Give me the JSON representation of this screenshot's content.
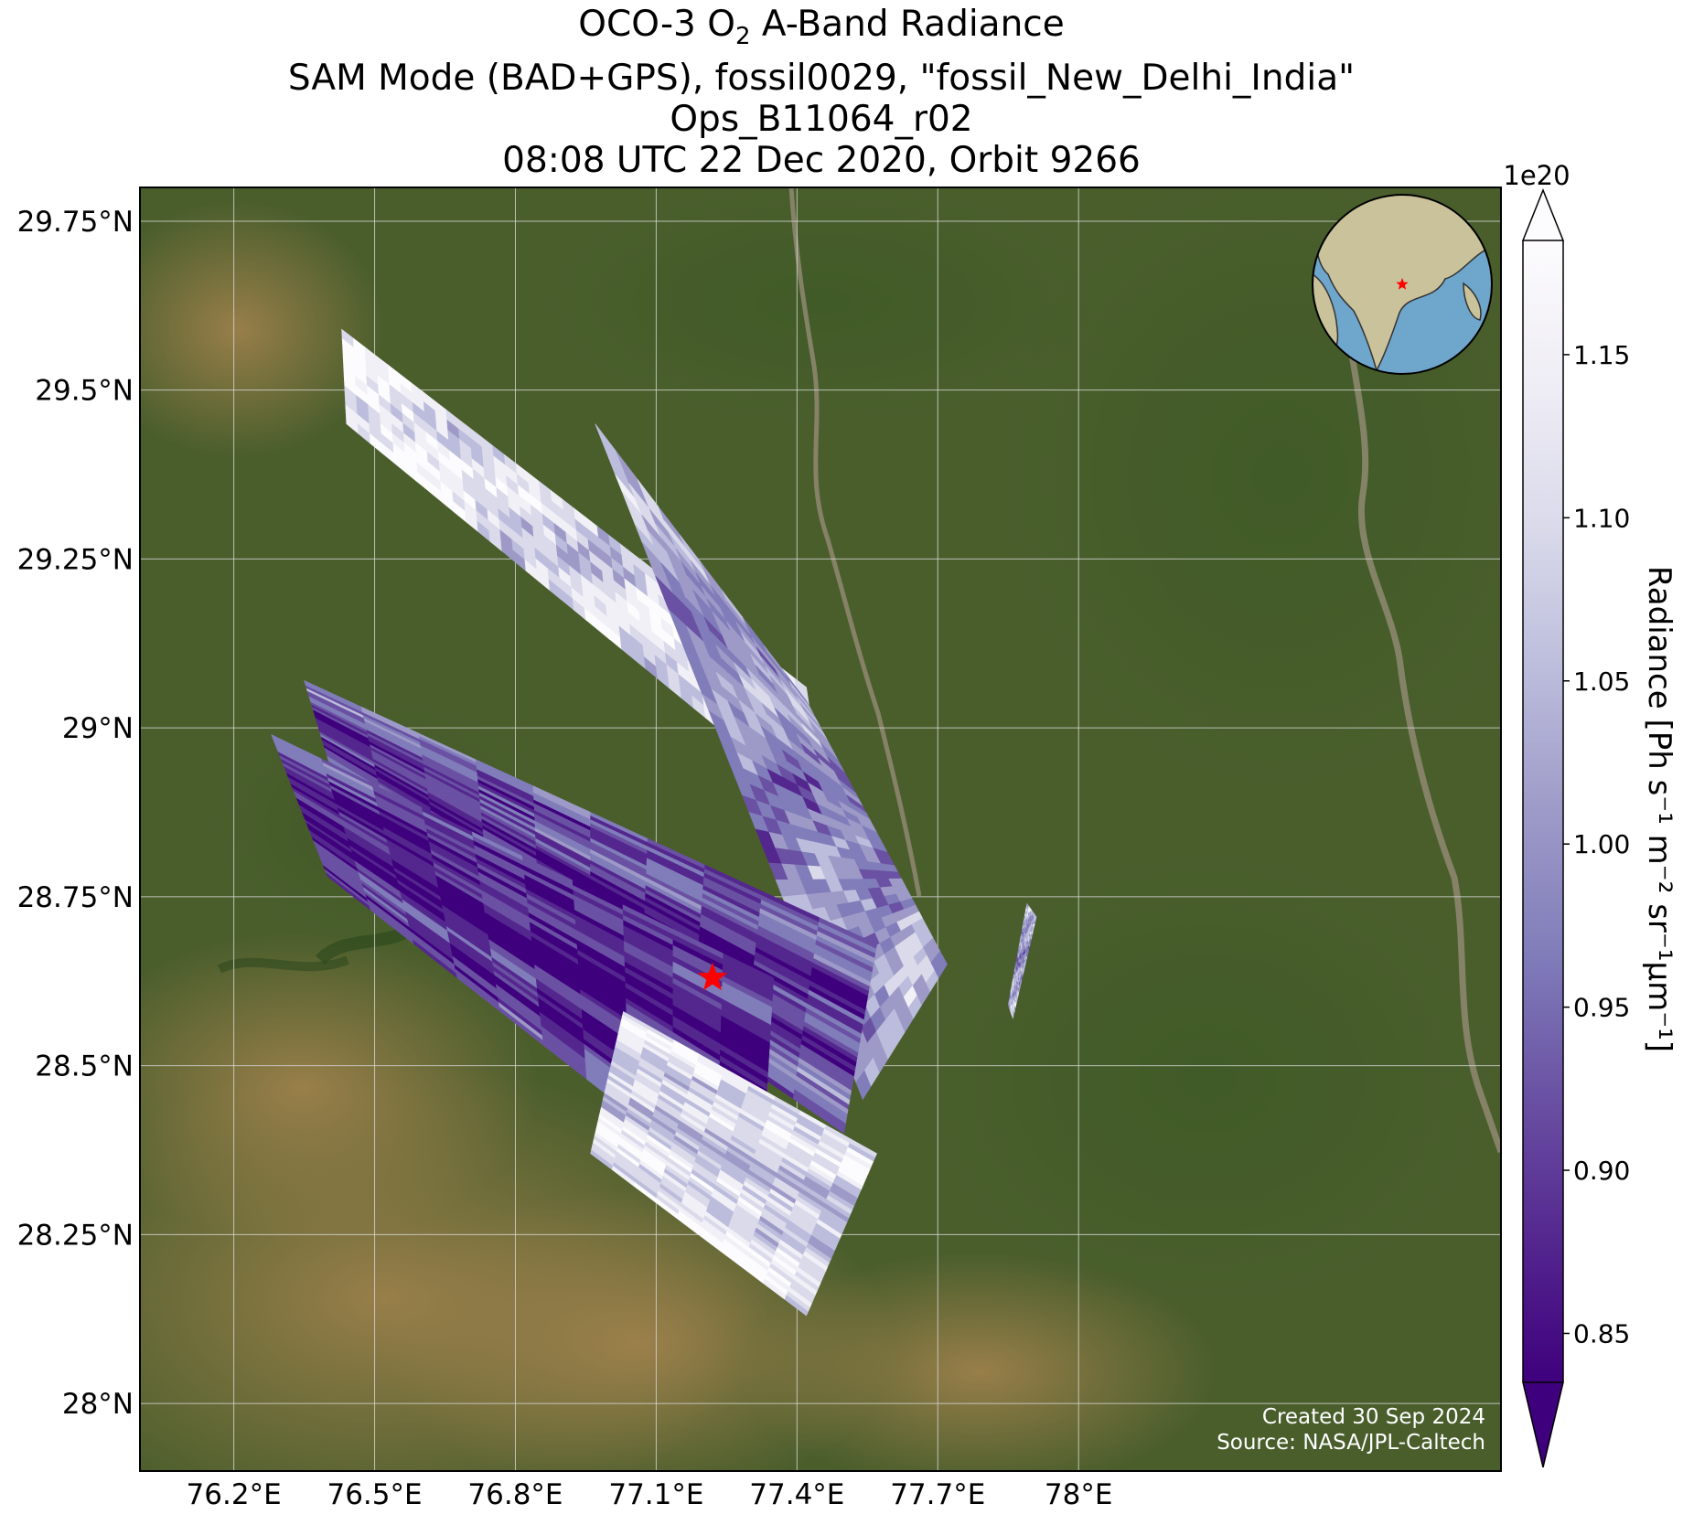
{
  "title": {
    "line1_prefix": "OCO-3 O",
    "line1_subscript": "2",
    "line1_suffix": " A-Band Radiance",
    "line2": "SAM Mode (BAD+GPS), fossil0029, \"fossil_New_Delhi_India\"",
    "line3": "Ops_B11064_r02",
    "line4": "08:08 UTC 22 Dec 2020, Orbit 9266"
  },
  "map": {
    "lon_range": [
      76.0,
      78.9
    ],
    "lat_range": [
      27.9,
      29.8
    ],
    "lat_ticks": [
      {
        "value": 29.75,
        "label": "29.75°N"
      },
      {
        "value": 29.5,
        "label": "29.5°N"
      },
      {
        "value": 29.25,
        "label": "29.25°N"
      },
      {
        "value": 29.0,
        "label": "29°N"
      },
      {
        "value": 28.75,
        "label": "28.75°N"
      },
      {
        "value": 28.5,
        "label": "28.5°N"
      },
      {
        "value": 28.25,
        "label": "28.25°N"
      },
      {
        "value": 28.0,
        "label": "28°N"
      }
    ],
    "lon_ticks": [
      {
        "value": 76.2,
        "label": "76.2°E"
      },
      {
        "value": 76.5,
        "label": "76.5°E"
      },
      {
        "value": 76.8,
        "label": "76.8°E"
      },
      {
        "value": 77.1,
        "label": "77.1°E"
      },
      {
        "value": 77.4,
        "label": "77.4°E"
      },
      {
        "value": 77.7,
        "label": "77.7°E"
      },
      {
        "value": 78.0,
        "label": "78°E"
      }
    ],
    "target_marker": {
      "name": "fossil_New_Delhi_India",
      "lon": 77.22,
      "lat": 28.63,
      "color": "#ff0000"
    },
    "basemap_colors": {
      "vegetation": "#4a5e2c",
      "arid": "#9c7a47",
      "river": "#8f8872"
    },
    "swaths": [
      {
        "id": "swath-1",
        "corners": [
          [
            76.43,
            29.59
          ],
          [
            76.44,
            29.45
          ],
          [
            77.46,
            28.87
          ],
          [
            77.42,
            29.06
          ]
        ],
        "mean_radiance": 1.12
      },
      {
        "id": "swath-2",
        "corners": [
          [
            76.97,
            29.45
          ],
          [
            77.42,
            29.04
          ],
          [
            77.72,
            28.65
          ],
          [
            77.54,
            28.45
          ]
        ],
        "mean_radiance": 1.0
      },
      {
        "id": "swath-3",
        "corners": [
          [
            76.35,
            29.07
          ],
          [
            77.57,
            28.68
          ],
          [
            77.5,
            28.4
          ],
          [
            76.42,
            28.91
          ]
        ],
        "mean_radiance": 0.92
      },
      {
        "id": "swath-4",
        "corners": [
          [
            76.28,
            28.99
          ],
          [
            77.35,
            28.63
          ],
          [
            77.32,
            28.28
          ],
          [
            76.4,
            28.78
          ]
        ],
        "mean_radiance": 0.88
      },
      {
        "id": "swath-5",
        "corners": [
          [
            77.03,
            28.58
          ],
          [
            77.57,
            28.37
          ],
          [
            77.42,
            28.13
          ],
          [
            76.96,
            28.37
          ]
        ],
        "mean_radiance": 1.1
      },
      {
        "id": "swath-6",
        "corners": [
          [
            77.89,
            28.74
          ],
          [
            77.91,
            28.72
          ],
          [
            77.86,
            28.57
          ],
          [
            77.85,
            28.59
          ]
        ],
        "mean_radiance": 1.02
      }
    ],
    "cell_colors": [
      "#3f007d",
      "#54278f",
      "#6a51a3",
      "#807dba",
      "#9e9ac8",
      "#bcbddc",
      "#dadaeb",
      "#f2f0f7",
      "#fcfbfd"
    ]
  },
  "inset_globe": {
    "marker_color": "#ff0000",
    "ocean_color": "#6ea6cc",
    "land_color": "#c9c29a"
  },
  "colorbar": {
    "multiplier": "1e20",
    "label": "Radiance [Ph s⁻¹ m⁻² sr⁻¹μm⁻¹]",
    "vmin": 0.835,
    "vmax": 1.185,
    "extend": "both",
    "ticks": [
      {
        "value": 0.85,
        "label": "0.85"
      },
      {
        "value": 0.9,
        "label": "0.90"
      },
      {
        "value": 0.95,
        "label": "0.95"
      },
      {
        "value": 1.0,
        "label": "1.00"
      },
      {
        "value": 1.05,
        "label": "1.05"
      },
      {
        "value": 1.1,
        "label": "1.10"
      },
      {
        "value": 1.15,
        "label": "1.15"
      }
    ],
    "colors": [
      "#3f007d",
      "#54278f",
      "#6a51a3",
      "#807dba",
      "#9e9ac8",
      "#bcbddc",
      "#dadaeb",
      "#efedf5",
      "#fcfbfd"
    ]
  },
  "footer": {
    "created": "Created 30 Sep 2024",
    "source": "Source: NASA/JPL-Caltech"
  }
}
